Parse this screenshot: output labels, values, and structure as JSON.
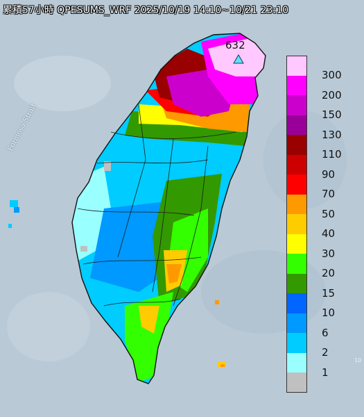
{
  "title": "累積57小時 QPESUMS_WRF 2025/10/19 14:10~10/21 23:10",
  "sea_label": "Formosa Strait",
  "max_point": {
    "value": "632",
    "marker_color": "#5fe0ff"
  },
  "edge_mark": "10",
  "legend": [
    {
      "label": "300",
      "color": "#ffc8ff"
    },
    {
      "label": "200",
      "color": "#ff00ff"
    },
    {
      "label": "150",
      "color": "#cc00cc"
    },
    {
      "label": "130",
      "color": "#990099"
    },
    {
      "label": "110",
      "color": "#990000"
    },
    {
      "label": "90",
      "color": "#cc0000"
    },
    {
      "label": "70",
      "color": "#ff0000"
    },
    {
      "label": "50",
      "color": "#ff9900"
    },
    {
      "label": "40",
      "color": "#ffcc00"
    },
    {
      "label": "30",
      "color": "#ffff00"
    },
    {
      "label": "20",
      "color": "#33ff00"
    },
    {
      "label": "15",
      "color": "#339900"
    },
    {
      "label": "10",
      "color": "#0066ff"
    },
    {
      "label": "6",
      "color": "#0099ff"
    },
    {
      "label": "2",
      "color": "#00ccff"
    },
    {
      "label": "1",
      "color": "#99ffff"
    },
    {
      "label": "",
      "color": "#c0c0c0"
    }
  ],
  "colors": {
    "sea": "#b9c9d6",
    "border": "#1a1a1a"
  }
}
